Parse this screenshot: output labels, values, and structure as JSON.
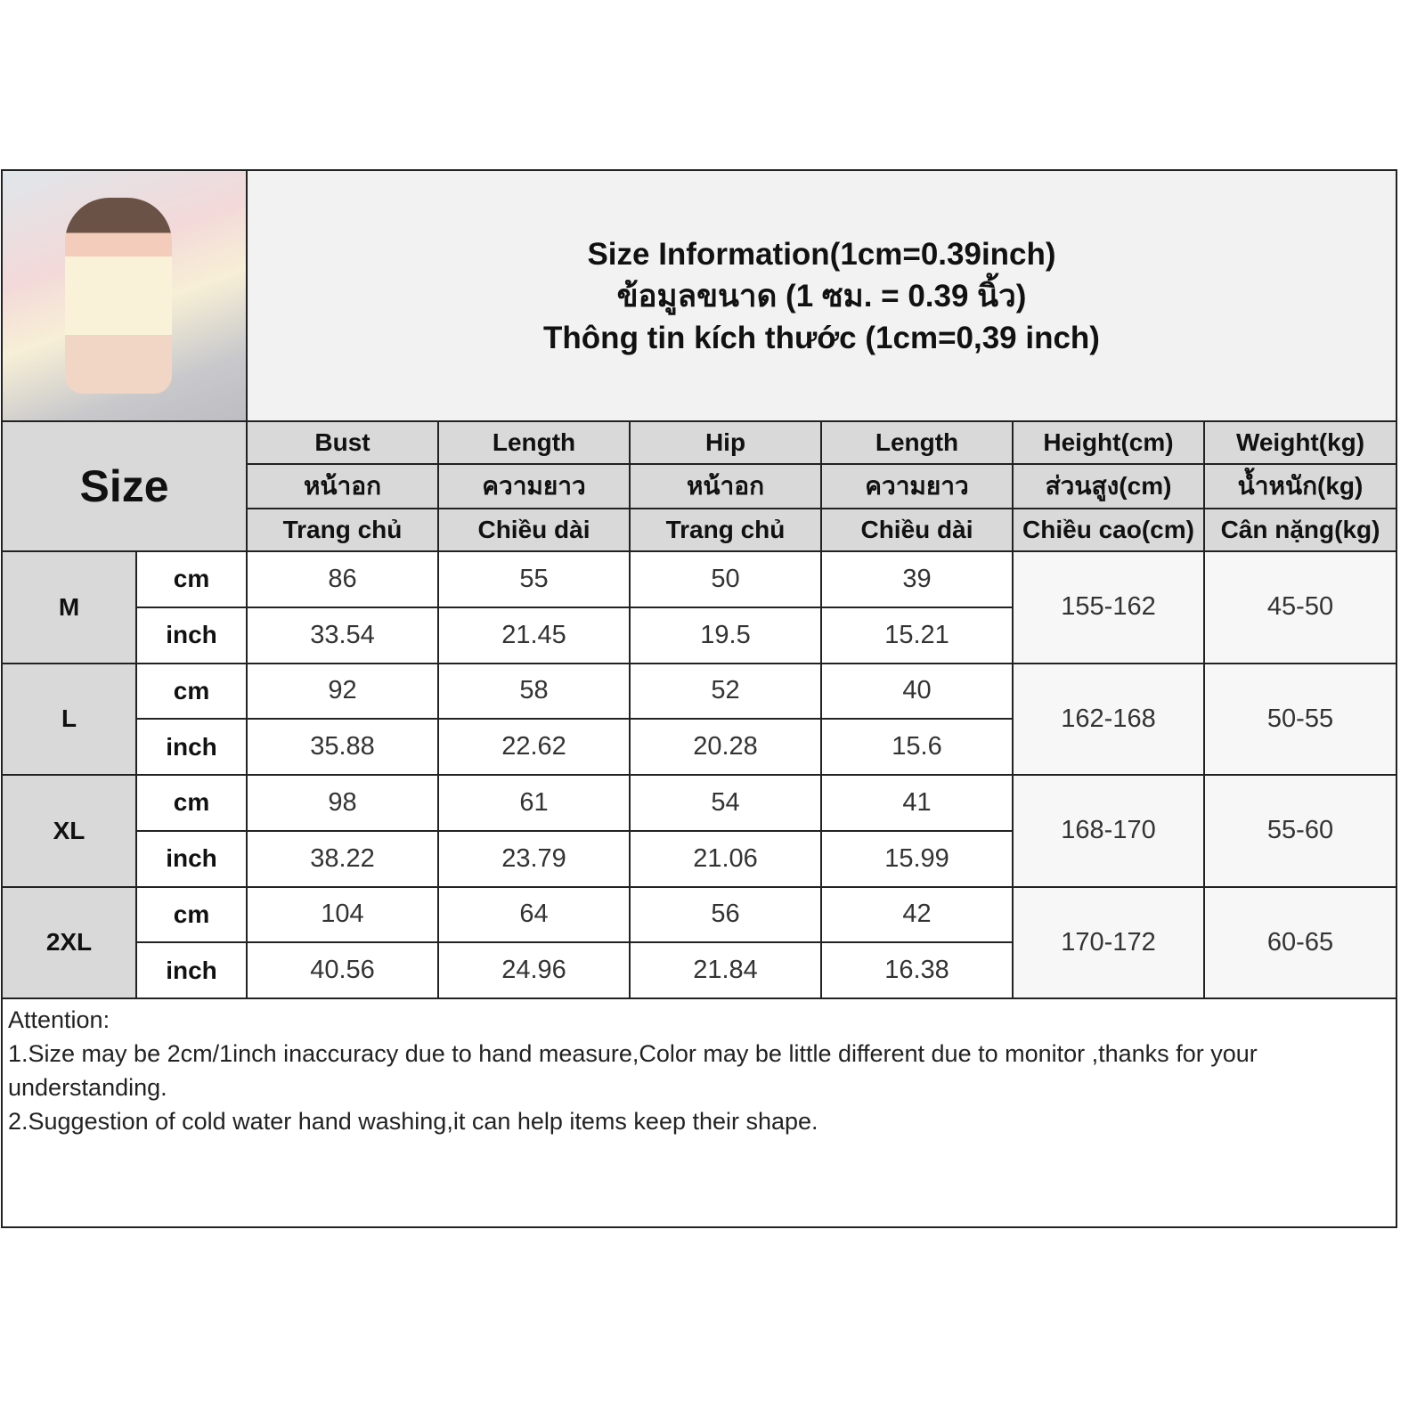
{
  "title_lines": [
    "Size Information(1cm=0.39inch)",
    "ข้อมูลขนาด (1 ซม. = 0.39 นิ้ว)",
    "Thông tin kích thước (1cm=0,39 inch)"
  ],
  "size_label": "Size",
  "columns": [
    {
      "en": "Bust",
      "th": "หน้าอก",
      "vi": "Trang chủ"
    },
    {
      "en": "Length",
      "th": "ความยาว",
      "vi": "Chiều dài"
    },
    {
      "en": "Hip",
      "th": "หน้าอก",
      "vi": "Trang chủ"
    },
    {
      "en": "Length",
      "th": "ความยาว",
      "vi": "Chiều dài"
    },
    {
      "en": "Height(cm)",
      "th": "ส่วนสูง(cm)",
      "vi": "Chiều cao(cm)"
    },
    {
      "en": "Weight(kg)",
      "th": "น้ำหนัก(kg)",
      "vi": "Cân nặng(kg)"
    }
  ],
  "units": {
    "cm": "cm",
    "inch": "inch"
  },
  "rows": [
    {
      "size": "M",
      "cm": [
        "86",
        "55",
        "50",
        "39"
      ],
      "inch": [
        "33.54",
        "21.45",
        "19.5",
        "15.21"
      ],
      "height": "155-162",
      "weight": "45-50"
    },
    {
      "size": "L",
      "cm": [
        "92",
        "58",
        "52",
        "40"
      ],
      "inch": [
        "35.88",
        "22.62",
        "20.28",
        "15.6"
      ],
      "height": "162-168",
      "weight": "50-55"
    },
    {
      "size": "XL",
      "cm": [
        "98",
        "61",
        "54",
        "41"
      ],
      "inch": [
        "38.22",
        "23.79",
        "21.06",
        "15.99"
      ],
      "height": "168-170",
      "weight": "55-60"
    },
    {
      "size": "2XL",
      "cm": [
        "104",
        "64",
        "56",
        "42"
      ],
      "inch": [
        "40.56",
        "24.96",
        "21.84",
        "16.38"
      ],
      "height": "170-172",
      "weight": "60-65"
    }
  ],
  "notes": [
    "Attention:",
    "1.Size may be 2cm/1inch inaccuracy due to hand measure,Color may be little different due to monitor ,thanks for your understanding.",
    "2.Suggestion of cold water hand washing,it can help items keep their shape."
  ]
}
